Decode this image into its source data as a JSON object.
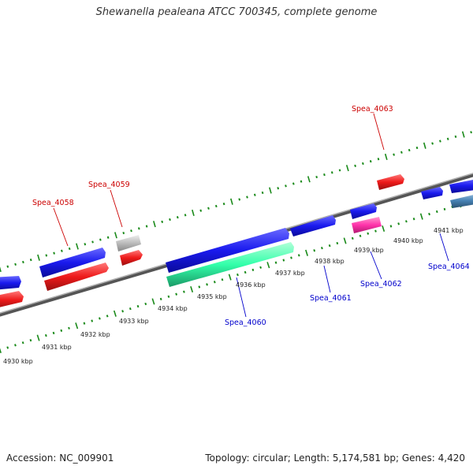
{
  "title": "Shewanella pealeana ATCC 700345, complete genome",
  "footer": {
    "accession": "Accession: NC_009901",
    "stats": "Topology: circular; Length: 5,174,581 bp; Genes: 4,420"
  },
  "colors": {
    "backbone": "#808080",
    "forward_gene": "#1a1aee",
    "reverse_gene": "#ee1a1a",
    "rrna_like": "#33ffaa",
    "pink_feature": "#ff33aa",
    "grey_feature": "#bbbbbb",
    "steel_feature": "#4682b4",
    "tick_green": "#1a8a1a",
    "label_red": "#cc0000",
    "label_blue": "#0000cc"
  },
  "scale_labels": [
    "4930 kbp",
    "4931 kbp",
    "4932 kbp",
    "4933 kbp",
    "4934 kbp",
    "4935 kbp",
    "4936 kbp",
    "4937 kbp",
    "4938 kbp",
    "4939 kbp",
    "4940 kbp",
    "4941 kbp"
  ],
  "gene_labels": [
    {
      "text": "Spea_4058",
      "color": "red"
    },
    {
      "text": "Spea_4059",
      "color": "red"
    },
    {
      "text": "Spea_4063",
      "color": "red"
    },
    {
      "text": "Spea_4060",
      "color": "blue"
    },
    {
      "text": "Spea_4061",
      "color": "blue"
    },
    {
      "text": "Spea_4062",
      "color": "blue"
    },
    {
      "text": "Spea_4064",
      "color": "blue"
    }
  ]
}
